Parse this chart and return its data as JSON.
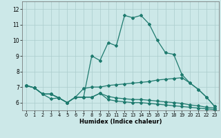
{
  "xlabel": "Humidex (Indice chaleur)",
  "background_color": "#cce8e8",
  "grid_color": "#aacccc",
  "line_color": "#1e7a6e",
  "xlim": [
    -0.5,
    23.5
  ],
  "ylim": [
    5.5,
    12.5
  ],
  "yticks": [
    6,
    7,
    8,
    9,
    10,
    11,
    12
  ],
  "xticks": [
    0,
    1,
    2,
    3,
    4,
    5,
    6,
    7,
    8,
    9,
    10,
    11,
    12,
    13,
    14,
    15,
    16,
    17,
    18,
    19,
    20,
    21,
    22,
    23
  ],
  "line1_x": [
    0,
    1,
    2,
    3,
    4,
    5,
    6,
    7,
    8,
    9,
    10,
    11,
    12,
    13,
    14,
    15,
    16,
    17,
    18,
    19,
    20,
    21,
    22,
    23
  ],
  "line1_y": [
    7.1,
    6.95,
    6.55,
    6.55,
    6.3,
    6.0,
    6.35,
    6.35,
    9.0,
    8.7,
    9.85,
    9.65,
    11.6,
    11.45,
    11.6,
    11.05,
    10.0,
    9.2,
    9.1,
    7.8,
    7.25,
    6.85,
    6.35,
    5.75
  ],
  "line2_x": [
    0,
    1,
    2,
    3,
    4,
    5,
    6,
    7,
    8,
    9,
    10,
    11,
    12,
    13,
    14,
    15,
    16,
    17,
    18,
    19,
    20,
    21,
    22,
    23
  ],
  "line2_y": [
    7.1,
    6.95,
    6.55,
    6.55,
    6.3,
    6.0,
    6.35,
    6.9,
    7.0,
    7.0,
    7.1,
    7.15,
    7.2,
    7.25,
    7.3,
    7.35,
    7.45,
    7.5,
    7.55,
    7.6,
    7.25,
    6.85,
    6.35,
    5.75
  ],
  "line3_x": [
    0,
    1,
    2,
    3,
    4,
    5,
    6,
    7,
    8,
    9,
    10,
    11,
    12,
    13,
    14,
    15,
    16,
    17,
    18,
    19,
    20,
    21,
    22,
    23
  ],
  "line3_y": [
    7.1,
    6.95,
    6.55,
    6.55,
    6.3,
    6.0,
    6.35,
    6.35,
    6.35,
    6.6,
    6.4,
    6.3,
    6.25,
    6.2,
    6.2,
    6.15,
    6.1,
    6.05,
    6.0,
    5.95,
    5.85,
    5.8,
    5.7,
    5.65
  ],
  "line4_x": [
    0,
    1,
    2,
    3,
    4,
    5,
    6,
    7,
    8,
    9,
    10,
    11,
    12,
    13,
    14,
    15,
    16,
    17,
    18,
    19,
    20,
    21,
    22,
    23
  ],
  "line4_y": [
    7.1,
    6.95,
    6.55,
    6.25,
    6.3,
    6.0,
    6.35,
    6.35,
    6.35,
    6.6,
    6.2,
    6.1,
    6.05,
    6.0,
    6.0,
    5.95,
    5.9,
    5.85,
    5.8,
    5.75,
    5.7,
    5.65,
    5.6,
    5.55
  ]
}
